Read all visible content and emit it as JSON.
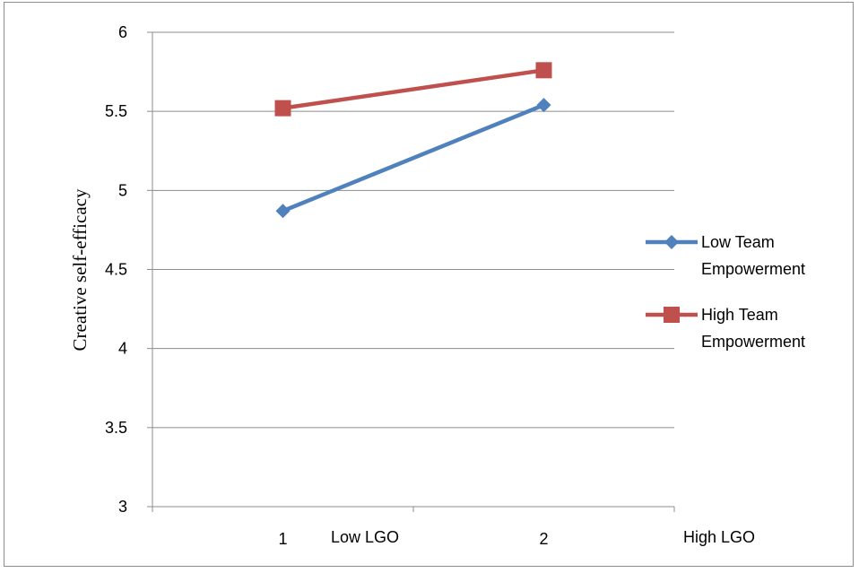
{
  "chart_data": {
    "type": "line",
    "title": "",
    "ylabel": "Creative self-efficacy",
    "xlabel": "",
    "categories": [
      "1",
      "2"
    ],
    "x_annotations": [
      "Low LGO",
      "High LGO"
    ],
    "ylim": [
      3,
      6
    ],
    "y_ticks": [
      "3",
      "3.5",
      "4",
      "4.5",
      "5",
      "5.5",
      "6"
    ],
    "grid": true,
    "legend_position": "right",
    "series": [
      {
        "name": "Low Team Empowerment",
        "name_lines": [
          "Low Team",
          "Empowerment"
        ],
        "values": [
          4.87,
          5.54
        ],
        "color": "#4f81bd",
        "marker": "diamond"
      },
      {
        "name": "High Team Empowerment",
        "name_lines": [
          "High Team",
          "Empowerment"
        ],
        "values": [
          5.52,
          5.76
        ],
        "color": "#c0504d",
        "marker": "square"
      }
    ]
  }
}
